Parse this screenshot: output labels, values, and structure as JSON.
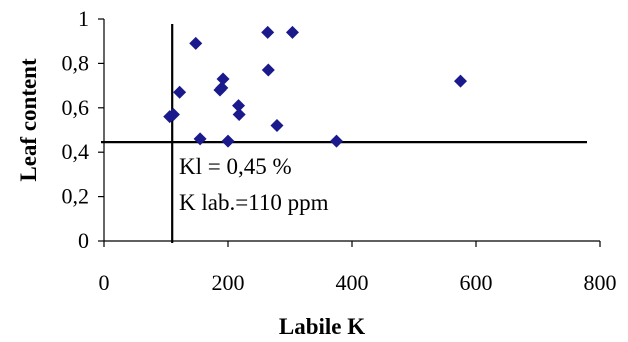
{
  "chart_data": {
    "type": "scatter",
    "title": "",
    "xlabel": "Labile K",
    "ylabel": "Leaf content",
    "xlim": [
      0,
      800
    ],
    "ylim": [
      0,
      1
    ],
    "x_ticks": [
      {
        "value": 0,
        "label": "0"
      },
      {
        "value": 200,
        "label": "200"
      },
      {
        "value": 400,
        "label": "400"
      },
      {
        "value": 600,
        "label": "600"
      },
      {
        "value": 800,
        "label": "800"
      }
    ],
    "y_ticks": [
      {
        "value": 0,
        "label": "0"
      },
      {
        "value": 0.2,
        "label": "0,2"
      },
      {
        "value": 0.4,
        "label": "0,4"
      },
      {
        "value": 0.6,
        "label": "0,6"
      },
      {
        "value": 0.8,
        "label": "0,8"
      },
      {
        "value": 1,
        "label": "1"
      }
    ],
    "grid": false,
    "legend": "none",
    "marker": "diamond",
    "marker_color": "#1a1a8c",
    "points": [
      {
        "x": 106,
        "y": 0.56
      },
      {
        "x": 112,
        "y": 0.57
      },
      {
        "x": 122,
        "y": 0.67
      },
      {
        "x": 148,
        "y": 0.89
      },
      {
        "x": 155,
        "y": 0.46
      },
      {
        "x": 187,
        "y": 0.68
      },
      {
        "x": 190,
        "y": 0.69
      },
      {
        "x": 192,
        "y": 0.73
      },
      {
        "x": 200,
        "y": 0.45
      },
      {
        "x": 217,
        "y": 0.61
      },
      {
        "x": 218,
        "y": 0.57
      },
      {
        "x": 264,
        "y": 0.94
      },
      {
        "x": 265,
        "y": 0.77
      },
      {
        "x": 279,
        "y": 0.52
      },
      {
        "x": 304,
        "y": 0.94
      },
      {
        "x": 375,
        "y": 0.45
      },
      {
        "x": 575,
        "y": 0.72
      }
    ],
    "reference_lines": [
      {
        "orientation": "vertical",
        "value": 110
      },
      {
        "orientation": "horizontal",
        "value": 0.45
      }
    ],
    "annotations": [
      "Kl = 0,45 %",
      "K lab.=110 ppm"
    ]
  }
}
